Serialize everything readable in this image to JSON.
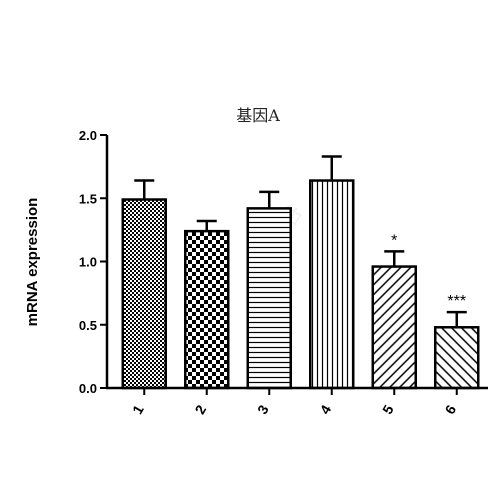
{
  "chart_data": {
    "type": "bar",
    "title": "基因A",
    "xlabel": "",
    "ylabel": "mRNA expression",
    "ylim": [
      0,
      2.0
    ],
    "yticks": [
      "0.0",
      "0.5",
      "1.0",
      "1.5",
      "2.0"
    ],
    "categories": [
      "1",
      "2",
      "3",
      "4",
      "5",
      "6"
    ],
    "values": [
      1.49,
      1.24,
      1.42,
      1.64,
      0.96,
      0.48
    ],
    "errors": [
      0.15,
      0.08,
      0.13,
      0.19,
      0.12,
      0.12
    ],
    "annotations": [
      "",
      "",
      "",
      "",
      "*",
      "***"
    ],
    "patterns": [
      "fine-checker",
      "coarse-checker",
      "horizontal-lines",
      "vertical-lines",
      "diagonal-right",
      "diagonal-left"
    ],
    "grid": false,
    "legend": "none",
    "bar_color": "#000000",
    "fill_color": "#ffffff"
  }
}
